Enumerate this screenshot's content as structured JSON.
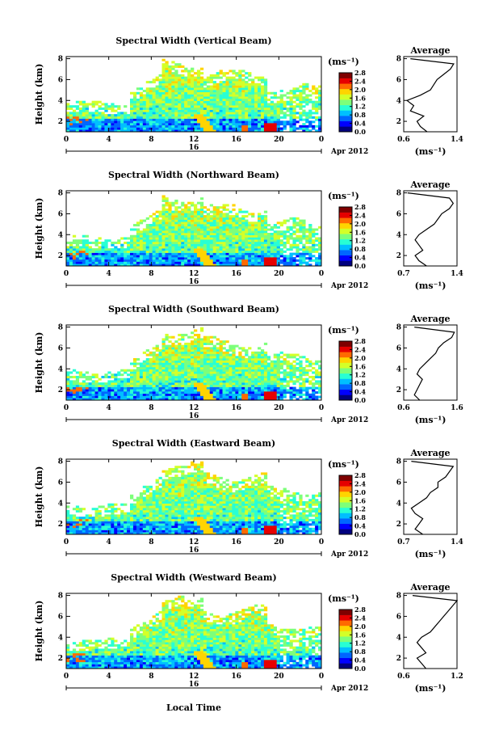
{
  "colors": {
    "jet": [
      "#00007f",
      "#0000ff",
      "#0066ff",
      "#00bfff",
      "#28ffd4",
      "#7dff7a",
      "#d4ff28",
      "#ffd400",
      "#ff6a00",
      "#e60000",
      "#7f0000"
    ]
  },
  "shared": {
    "x_ticks": [
      "0",
      "4",
      "8",
      "12",
      "16",
      "20",
      "0"
    ],
    "date_tick": "16",
    "date_label": "Apr 2012",
    "y_ticks": [
      "2",
      "4",
      "6",
      "8"
    ],
    "ylabel": "Height (km)",
    "cbar_unit": "(ms⁻¹)",
    "cbar_ticks": [
      "0.0",
      "0.4",
      "0.8",
      "1.2",
      "1.6",
      "2.0",
      "2.4",
      "2.8"
    ],
    "avg_title": "Average",
    "avg_unit": "(ms⁻¹)",
    "xlabel": "Local Time"
  },
  "chart_data": [
    {
      "type": "heatmap",
      "title": "Spectral Width (Vertical Beam)",
      "xlim": [
        0,
        24
      ],
      "ylim": [
        1,
        8.2
      ],
      "clim": [
        0.0,
        2.8
      ],
      "average": {
        "title": "Average",
        "xlim": [
          0.6,
          1.4
        ],
        "x_ticks": [
          "0.6",
          "1.4"
        ],
        "ylim": [
          1,
          8.2
        ],
        "height": [
          1.0,
          1.5,
          2.0,
          2.5,
          3.0,
          3.5,
          4.0,
          4.5,
          5.0,
          5.5,
          6.0,
          6.5,
          7.0,
          7.5,
          8.0
        ],
        "value": [
          0.95,
          0.85,
          0.8,
          0.9,
          0.7,
          0.75,
          0.65,
          0.85,
          1.0,
          1.05,
          1.1,
          1.2,
          1.3,
          1.35,
          0.7
        ]
      }
    },
    {
      "type": "heatmap",
      "title": "Spectral Width (Northward Beam)",
      "xlim": [
        0,
        24
      ],
      "ylim": [
        1,
        8.2
      ],
      "clim": [
        0.0,
        2.8
      ],
      "average": {
        "title": "Average",
        "xlim": [
          0.7,
          1.4
        ],
        "x_ticks": [
          "0.7",
          "1.4"
        ],
        "ylim": [
          1,
          8.2
        ],
        "height": [
          1.0,
          1.5,
          2.0,
          2.5,
          3.0,
          3.5,
          4.0,
          4.5,
          5.0,
          5.5,
          6.0,
          6.5,
          7.0,
          7.5,
          8.0
        ],
        "value": [
          1.0,
          0.9,
          0.85,
          0.95,
          0.9,
          0.85,
          0.9,
          1.0,
          1.1,
          1.15,
          1.2,
          1.3,
          1.35,
          1.3,
          0.75
        ]
      }
    },
    {
      "type": "heatmap",
      "title": "Spectral Width (Southward Beam)",
      "xlim": [
        0,
        24
      ],
      "ylim": [
        1,
        8.2
      ],
      "clim": [
        0.0,
        2.8
      ],
      "average": {
        "title": "Average",
        "xlim": [
          0.6,
          1.6
        ],
        "x_ticks": [
          "0.6",
          "1.6"
        ],
        "ylim": [
          1,
          8.2
        ],
        "height": [
          1.0,
          1.5,
          2.0,
          2.5,
          3.0,
          3.5,
          4.0,
          4.5,
          5.0,
          5.5,
          6.0,
          6.5,
          7.0,
          7.5,
          8.0
        ],
        "value": [
          0.9,
          0.8,
          0.85,
          0.9,
          0.95,
          0.85,
          0.9,
          1.0,
          1.1,
          1.2,
          1.25,
          1.35,
          1.5,
          1.55,
          0.8
        ]
      }
    },
    {
      "type": "heatmap",
      "title": "Spectral Width (Eastward Beam)",
      "xlim": [
        0,
        24
      ],
      "ylim": [
        1,
        8.2
      ],
      "clim": [
        0.0,
        2.8
      ],
      "average": {
        "title": "Average",
        "xlim": [
          0.7,
          1.4
        ],
        "x_ticks": [
          "0.7",
          "1.4"
        ],
        "ylim": [
          1,
          8.2
        ],
        "height": [
          1.0,
          1.5,
          2.0,
          2.5,
          3.0,
          3.5,
          4.0,
          4.5,
          5.0,
          5.5,
          6.0,
          6.5,
          7.0,
          7.5,
          8.0
        ],
        "value": [
          0.95,
          0.85,
          0.9,
          0.95,
          0.85,
          0.8,
          0.9,
          1.0,
          1.05,
          1.15,
          1.15,
          1.25,
          1.3,
          1.35,
          0.8
        ]
      }
    },
    {
      "type": "heatmap",
      "title": "Spectral Width (Westward Beam)",
      "xlim": [
        0,
        24
      ],
      "ylim": [
        1,
        8.2
      ],
      "clim": [
        0.0,
        2.8
      ],
      "average": {
        "title": "Average",
        "xlim": [
          0.6,
          1.2
        ],
        "x_ticks": [
          "0.6",
          "1.2"
        ],
        "ylim": [
          1,
          8.2
        ],
        "height": [
          1.0,
          1.5,
          2.0,
          2.5,
          3.0,
          3.5,
          4.0,
          4.5,
          5.0,
          5.5,
          6.0,
          6.5,
          7.0,
          7.5,
          8.0
        ],
        "value": [
          0.85,
          0.8,
          0.75,
          0.85,
          0.8,
          0.75,
          0.8,
          0.9,
          0.95,
          1.0,
          1.05,
          1.1,
          1.15,
          1.2,
          0.7
        ]
      }
    }
  ]
}
